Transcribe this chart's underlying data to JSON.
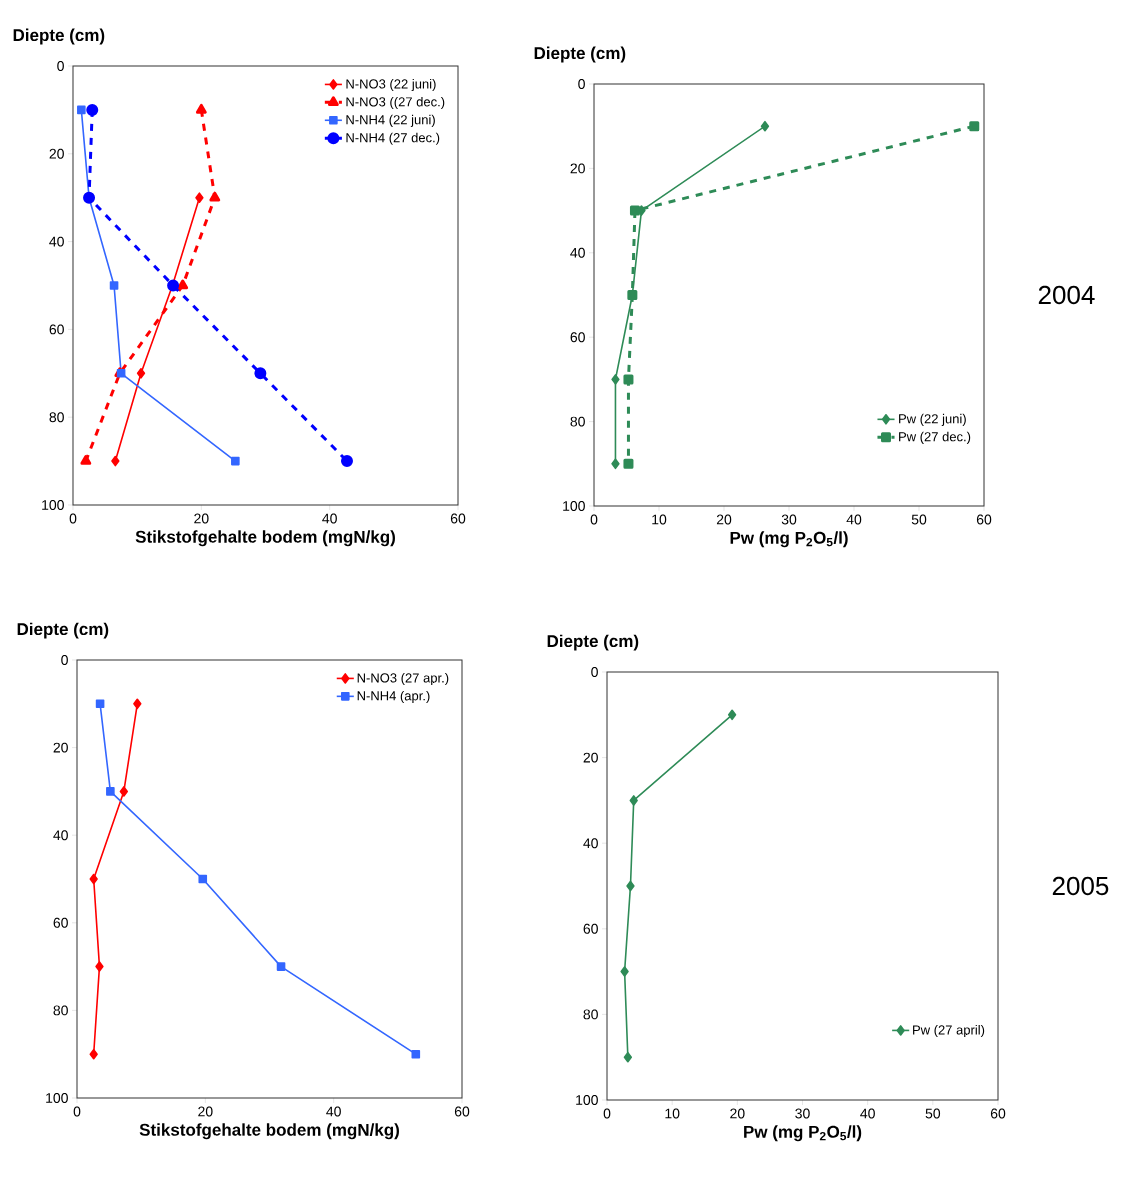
{
  "chart_data": [
    {
      "type": "line",
      "xlabel": "Stikstofgehalte bodem (mgN/kg)",
      "ylabel": "Diepte (cm)",
      "xlim": [
        0,
        60
      ],
      "xticks": [
        0,
        20,
        40,
        60
      ],
      "ylim": [
        100,
        0
      ],
      "yticks": [
        0,
        20,
        40,
        60,
        80,
        100
      ],
      "legend": "top right",
      "series": [
        {
          "name": "N-NO3 (22 juni)",
          "color": "#ff0000",
          "marker": "diamond",
          "line_style": "solid",
          "x": [
            19.7,
            15.5,
            10.6,
            6.6
          ],
          "values": [
            30,
            50,
            70,
            90
          ]
        },
        {
          "name": "N-NO3 ((27 dec.)",
          "color": "#ff0000",
          "marker": "triangle",
          "line_style": "dashed",
          "x": [
            20.0,
            22.1,
            17.1,
            7.3,
            2.0
          ],
          "values": [
            10,
            30,
            50,
            70,
            90
          ]
        },
        {
          "name": "N-NH4 (22 juni)",
          "color": "#3366ff",
          "marker": "square",
          "line_style": "solid",
          "x": [
            1.3,
            2.5,
            6.4,
            7.5,
            25.3
          ],
          "values": [
            10,
            30,
            50,
            70,
            90
          ]
        },
        {
          "name": "N-NH4 (27 dec.)",
          "color": "#0000ff",
          "marker": "circle",
          "line_style": "dashed",
          "x": [
            3.0,
            2.5,
            15.6,
            29.2,
            42.7
          ],
          "values": [
            10,
            30,
            50,
            70,
            90
          ]
        }
      ]
    },
    {
      "type": "line",
      "xlabel": "Pw (mg P$_{2}$O$_{5}$/l)",
      "ylabel": "Diepte (cm)",
      "xlim": [
        0,
        60
      ],
      "xticks": [
        0,
        10,
        20,
        30,
        40,
        50,
        60
      ],
      "ylim": [
        100,
        0
      ],
      "yticks": [
        0,
        20,
        40,
        60,
        80,
        100
      ],
      "legend": "bottom right",
      "annotations": [
        "2004"
      ],
      "series": [
        {
          "name": "Pw  (22 juni)",
          "color": "#2e8b57",
          "marker": "diamond",
          "line_style": "solid",
          "x": [
            26.3,
            7.3,
            5.9,
            3.3,
            3.3
          ],
          "values": [
            10,
            30,
            50,
            70,
            90
          ]
        },
        {
          "name": "Pw  (27 dec.)",
          "color": "#2e8b57",
          "marker": "square",
          "line_style": "dashed",
          "x": [
            58.5,
            6.3,
            5.9,
            5.3,
            5.3
          ],
          "values": [
            10,
            30,
            50,
            70,
            90
          ]
        }
      ]
    },
    {
      "type": "line",
      "xlabel": "Stikstofgehalte bodem (mgN/kg)",
      "ylabel": "Diepte (cm)",
      "xlim": [
        0,
        60
      ],
      "xticks": [
        0,
        20,
        40,
        60
      ],
      "ylim": [
        100,
        0
      ],
      "yticks": [
        0,
        20,
        40,
        60,
        80,
        100
      ],
      "legend": "top right",
      "series": [
        {
          "name": "N-NO3 (27 apr.)",
          "color": "#ff0000",
          "marker": "diamond",
          "line_style": "solid",
          "x": [
            9.4,
            7.3,
            2.6,
            3.5,
            2.6
          ],
          "values": [
            10,
            30,
            50,
            70,
            90
          ]
        },
        {
          "name": "N-NH4 (apr.)",
          "color": "#3366ff",
          "marker": "square",
          "line_style": "solid",
          "x": [
            3.6,
            5.2,
            19.6,
            31.8,
            52.8
          ],
          "values": [
            10,
            30,
            50,
            70,
            90
          ]
        }
      ]
    },
    {
      "type": "line",
      "xlabel": "Pw (mg P$_{2}$O$_{5}$/l)",
      "ylabel": "Diepte (cm)",
      "xlim": [
        0,
        60
      ],
      "xticks": [
        0,
        10,
        20,
        30,
        40,
        50,
        60
      ],
      "ylim": [
        100,
        0
      ],
      "yticks": [
        0,
        20,
        40,
        60,
        80,
        100
      ],
      "legend": "bottom right",
      "annotations": [
        "2005"
      ],
      "series": [
        {
          "name": "Pw (27 april)",
          "color": "#2e8b57",
          "marker": "diamond",
          "line_style": "solid",
          "x": [
            19.2,
            4.1,
            3.6,
            2.7,
            3.2
          ],
          "values": [
            10,
            30,
            50,
            70,
            90
          ]
        }
      ]
    }
  ]
}
